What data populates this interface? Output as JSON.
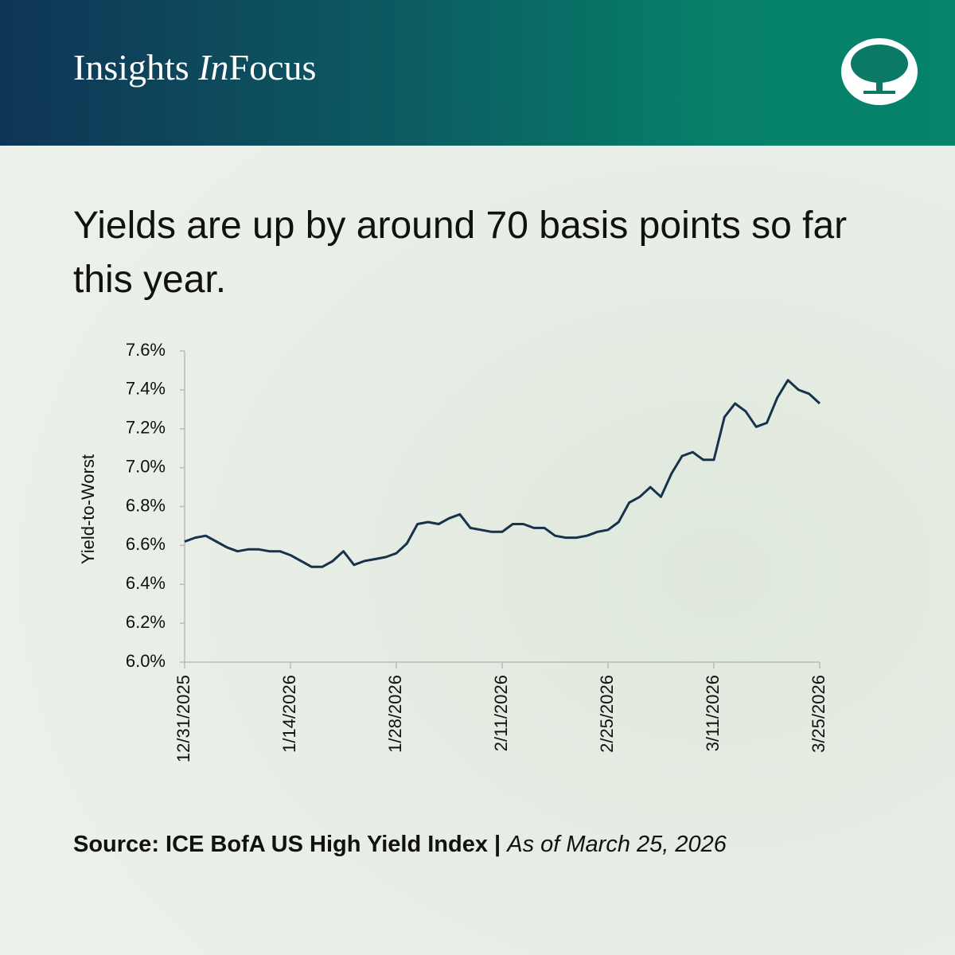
{
  "header": {
    "brand_prefix": "Insights",
    "brand_italic": "In",
    "brand_suffix": "Focus"
  },
  "chart_data": {
    "type": "line",
    "headline": "Yields are up by around 70 basis points so far this year.",
    "y_label": "Yield-to-Worst",
    "source": "Source: ICE BofA US High Yield Index |",
    "as_of": "As of March 25, 2026",
    "categories": [
      "12/31/2025",
      null,
      null,
      null,
      null,
      null,
      null,
      null,
      null,
      null,
      "1/14/2026",
      null,
      null,
      null,
      null,
      null,
      null,
      null,
      null,
      null,
      "1/28/2026",
      null,
      null,
      null,
      null,
      null,
      null,
      null,
      null,
      null,
      "2/11/2026",
      null,
      null,
      null,
      null,
      null,
      null,
      null,
      null,
      null,
      "2/25/2026",
      null,
      null,
      null,
      null,
      null,
      null,
      null,
      null,
      null,
      "3/11/2026",
      null,
      null,
      null,
      null,
      null,
      null,
      null,
      null,
      null,
      "3/25/2026"
    ],
    "series": [
      {
        "name": "Yield-to-Worst",
        "color": "#17324d",
        "values": [
          6.62,
          6.64,
          6.65,
          6.62,
          6.59,
          6.57,
          6.58,
          6.58,
          6.57,
          6.57,
          6.55,
          6.52,
          6.49,
          6.49,
          6.52,
          6.57,
          6.5,
          6.52,
          6.53,
          6.54,
          6.56,
          6.61,
          6.71,
          6.72,
          6.71,
          6.74,
          6.76,
          6.69,
          6.68,
          6.67,
          6.67,
          6.71,
          6.71,
          6.69,
          6.69,
          6.65,
          6.64,
          6.64,
          6.65,
          6.67,
          6.68,
          6.72,
          6.82,
          6.85,
          6.9,
          6.85,
          6.97,
          7.06,
          7.08,
          7.04,
          7.04,
          7.26,
          7.33,
          7.29,
          7.21,
          7.23,
          7.36,
          7.45,
          7.4,
          7.38,
          7.33
        ]
      }
    ],
    "ylim": [
      6.0,
      7.6
    ],
    "yticks": [
      {
        "value": 6.0,
        "label": "6.0%"
      },
      {
        "value": 6.2,
        "label": "6.2%"
      },
      {
        "value": 6.4,
        "label": "6.4%"
      },
      {
        "value": 6.6,
        "label": "6.6%"
      },
      {
        "value": 6.8,
        "label": "6.8%"
      },
      {
        "value": 7.0,
        "label": "7.0%"
      },
      {
        "value": 7.2,
        "label": "7.2%"
      },
      {
        "value": 7.4,
        "label": "7.4%"
      },
      {
        "value": 7.6,
        "label": "7.6%"
      }
    ],
    "grid": false
  }
}
